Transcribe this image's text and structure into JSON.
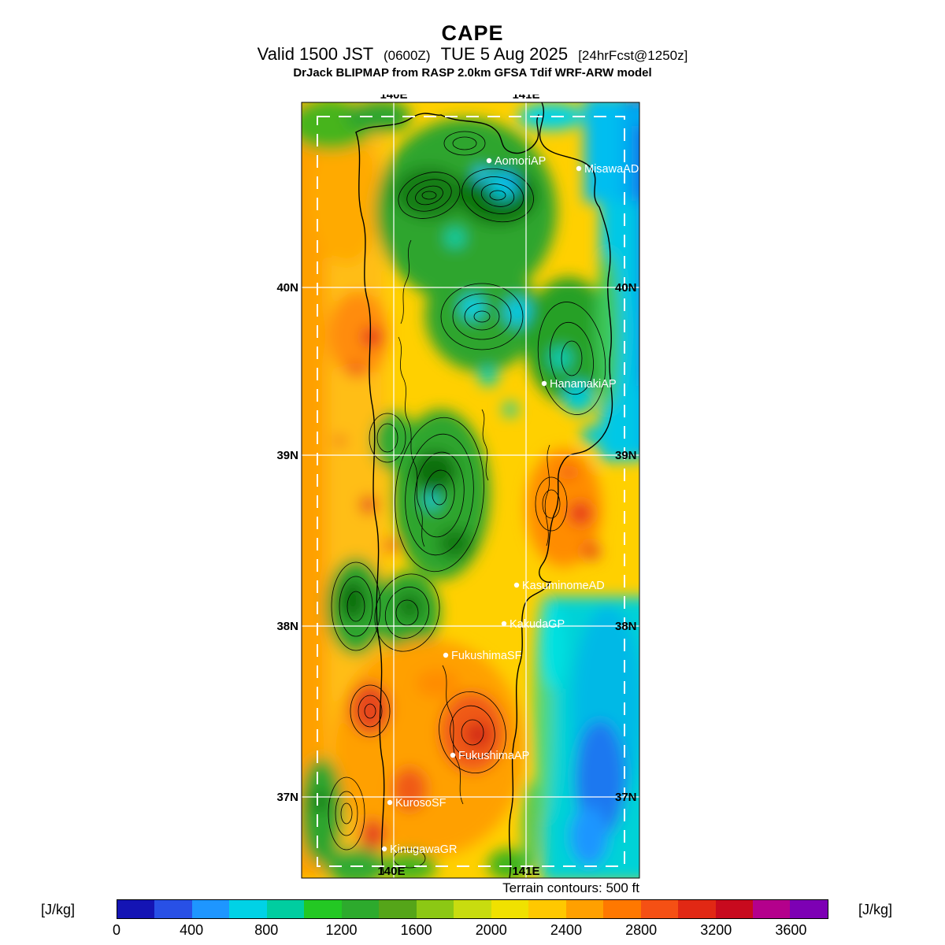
{
  "header": {
    "title": "CAPE",
    "valid": {
      "part1": "Valid 1500 JST",
      "part2": "(0600Z)",
      "part3": "TUE 5 Aug 2025",
      "part4": "[24hrFcst@1250z]"
    },
    "model_line": "DrJack BLIPMAP from RASP 2.0km GFSA Tdif WRF-ARW model"
  },
  "map": {
    "grid": {
      "lon_top": [
        "140E",
        "141E"
      ],
      "lon_bottom": [
        "140E",
        "141E"
      ],
      "lat_left": [
        "40N",
        "39N",
        "38N",
        "37N"
      ],
      "lat_right": [
        "40N",
        "39N",
        "38N",
        "37N"
      ]
    },
    "stations": [
      {
        "label": "AomoriAP"
      },
      {
        "label": "MisawaAD"
      },
      {
        "label": "HanamakiAP"
      },
      {
        "label": "KasuminomeAD"
      },
      {
        "label": "KakudaGP"
      },
      {
        "label": "FukushimaSF"
      },
      {
        "label": "FukushimaAP"
      },
      {
        "label": "KurosoSF"
      },
      {
        "label": "KinugawaGR"
      }
    ],
    "footnote": "Terrain contours: 500 ft"
  },
  "colorbar": {
    "unit_left": "[J/kg]",
    "unit_right": "[J/kg]",
    "min": 0,
    "max": 3800,
    "step": 200,
    "ticks": [
      0,
      400,
      800,
      1200,
      1600,
      2000,
      2400,
      2800,
      3200,
      3600
    ],
    "colors": [
      "#1414b4",
      "#2850e6",
      "#1e96ff",
      "#00d2e6",
      "#00cda0",
      "#23c823",
      "#2daa2d",
      "#55a519",
      "#8cc814",
      "#c8dc0f",
      "#f0e100",
      "#ffc800",
      "#ffa000",
      "#ff7800",
      "#f55014",
      "#e12814",
      "#c80a1e",
      "#b4008c",
      "#7d00b4"
    ]
  }
}
